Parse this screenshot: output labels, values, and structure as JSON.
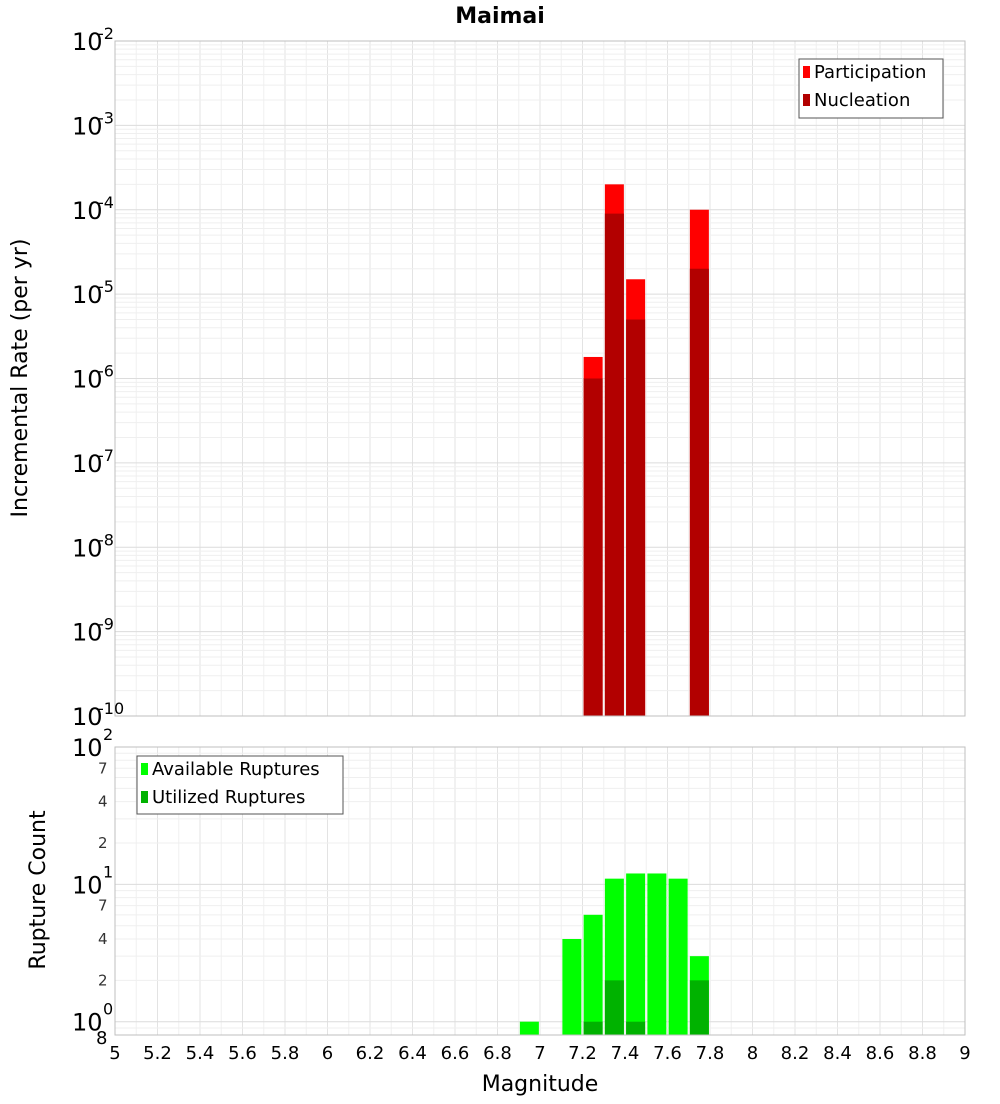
{
  "chart_data": [
    {
      "type": "bar",
      "title": "Maimai",
      "ylabel": "Incremental Rate (per yr)",
      "xlabel": "",
      "y_scale": "log",
      "xlim": [
        5,
        9
      ],
      "ylim": [
        1e-10,
        0.01
      ],
      "y_tick_exponents": [
        "-10",
        "-9",
        "-8",
        "-7",
        "-6",
        "-5",
        "-4",
        "-3",
        "-2"
      ],
      "grid": true,
      "legend_position": "top-right",
      "series": [
        {
          "name": "Participation",
          "color": "#ff0000",
          "x": [
            7.25,
            7.35,
            7.45,
            7.75
          ],
          "values": [
            1.8e-06,
            0.0002,
            1.5e-05,
            0.0001
          ]
        },
        {
          "name": "Nucleation",
          "color": "#b20000",
          "x": [
            7.25,
            7.35,
            7.45,
            7.75
          ],
          "values": [
            1e-06,
            9e-05,
            5e-06,
            2e-05
          ]
        }
      ]
    },
    {
      "type": "bar",
      "title": "",
      "ylabel": "Rupture Count",
      "xlabel": "Magnitude",
      "y_scale": "log",
      "xlim": [
        5,
        9
      ],
      "ylim": [
        0.8,
        100
      ],
      "y_tick_exponents": [
        "0",
        "1",
        "2"
      ],
      "y_minor_labels": [
        "8",
        "2",
        "4",
        "7",
        "2",
        "4",
        "7"
      ],
      "x_ticks": [
        "5",
        "5.2",
        "5.4",
        "5.6",
        "5.8",
        "6",
        "6.2",
        "6.4",
        "6.6",
        "6.8",
        "7",
        "7.2",
        "7.4",
        "7.6",
        "7.8",
        "8",
        "8.2",
        "8.4",
        "8.6",
        "8.8",
        "9"
      ],
      "grid": true,
      "legend_position": "top-left",
      "series": [
        {
          "name": "Available Ruptures",
          "color": "#00ff00",
          "x": [
            6.95,
            7.15,
            7.25,
            7.35,
            7.45,
            7.55,
            7.65,
            7.75
          ],
          "values": [
            1,
            4,
            6,
            11,
            12,
            12,
            11,
            3
          ]
        },
        {
          "name": "Utilized Ruptures",
          "color": "#00b200",
          "x": [
            7.25,
            7.35,
            7.45,
            7.75
          ],
          "values": [
            1,
            2,
            1,
            2
          ]
        }
      ]
    }
  ]
}
